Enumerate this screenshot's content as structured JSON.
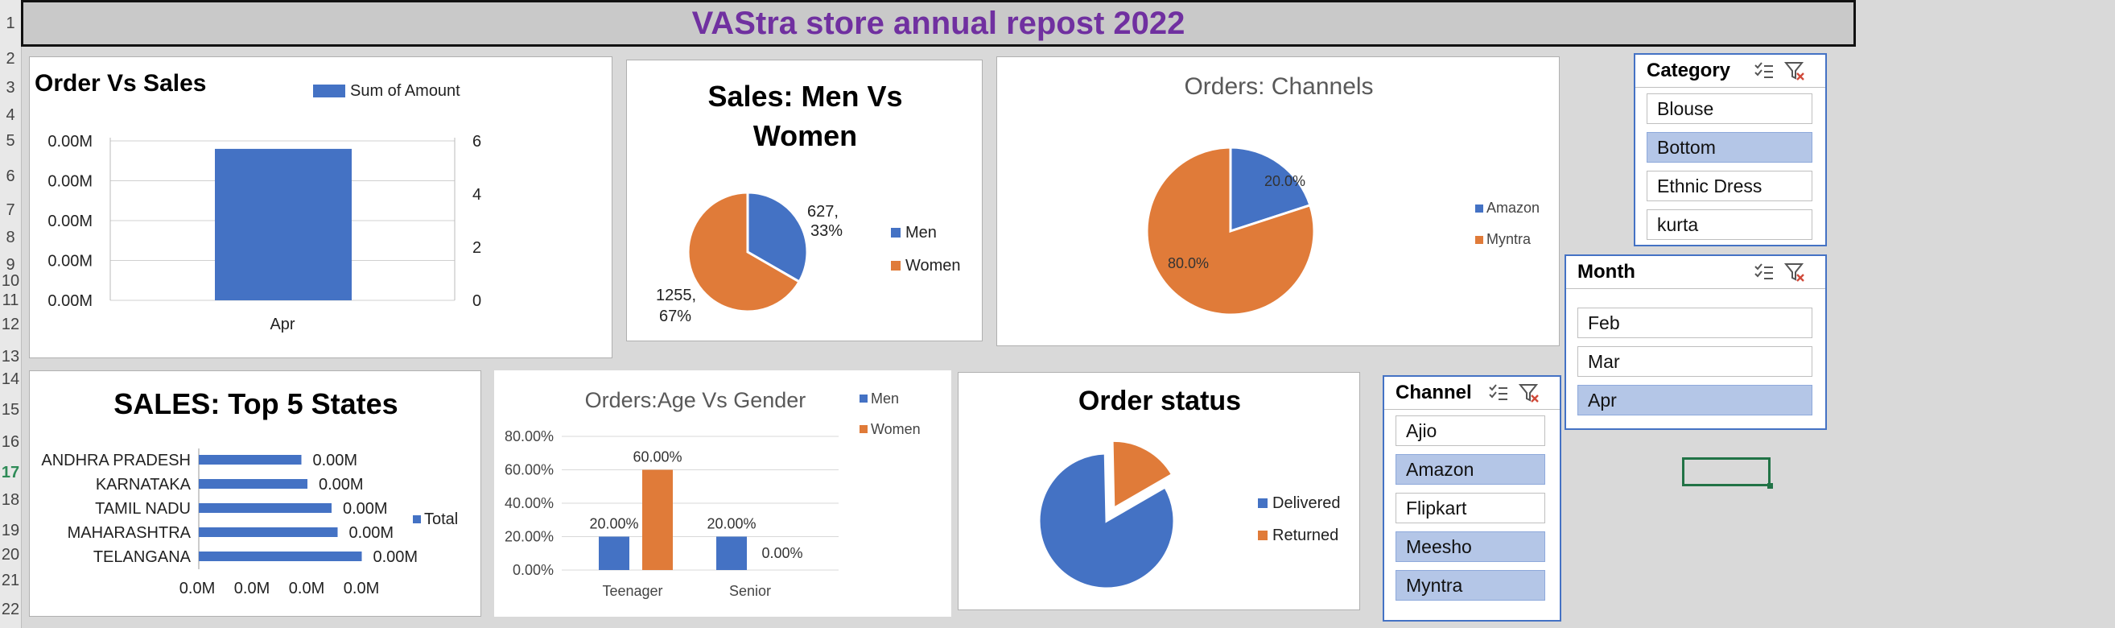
{
  "sheet": {
    "title": "VAStra store annual repost 2022",
    "row_numbers": [
      "1",
      "2",
      "3",
      "4",
      "5",
      "6",
      "7",
      "8",
      "9",
      "10",
      "11",
      "12",
      "13",
      "14",
      "15",
      "16",
      "17",
      "18",
      "19",
      "20",
      "21",
      "22"
    ],
    "active_row": "17"
  },
  "charts": {
    "order_vs_sales": {
      "title": "Order Vs Sales",
      "legend": "Sum of Amount",
      "left_ticks": [
        "0.00M",
        "0.00M",
        "0.00M",
        "0.00M",
        "0.00M"
      ],
      "right_ticks": [
        "6",
        "4",
        "2",
        "0"
      ],
      "category": "Apr"
    },
    "men_vs_women": {
      "title_line1": "Sales: Men Vs",
      "title_line2": "Women",
      "label_men_1": "627,",
      "label_men_2": "33%",
      "label_women_1": "1255,",
      "label_women_2": "67%",
      "legend": [
        "Men",
        "Women"
      ]
    },
    "channels": {
      "title": "Orders: Channels",
      "label_amazon": "20.0%",
      "label_myntra": "80.0%",
      "legend": [
        "Amazon",
        "Myntra"
      ]
    },
    "top_states": {
      "title": "SALES: Top 5 States",
      "states": [
        "ANDHRA PRADESH",
        "KARNATAKA",
        "TAMIL NADU",
        "MAHARASHTRA",
        "TELANGANA"
      ],
      "value_labels": [
        "0.00M",
        "0.00M",
        "0.00M",
        "0.00M",
        "0.00M"
      ],
      "x_ticks": [
        "0.0M",
        "0.0M",
        "0.0M",
        "0.0M"
      ],
      "legend": "Total"
    },
    "age_vs_gender": {
      "title": "Orders:Age Vs Gender",
      "y_ticks": [
        "80.00%",
        "60.00%",
        "40.00%",
        "20.00%",
        "0.00%"
      ],
      "categories": [
        "Teenager",
        "Senior"
      ],
      "bar_labels": {
        "teen_men": "20.00%",
        "teen_women": "60.00%",
        "senior_men": "20.00%",
        "senior_women": "0.00%"
      },
      "legend": [
        "Men",
        "Women"
      ]
    },
    "order_status": {
      "title": "Order status",
      "legend": [
        "Delivered",
        "Returned"
      ]
    }
  },
  "chart_data": [
    {
      "type": "bar",
      "title": "Order Vs Sales",
      "categories": [
        "Apr"
      ],
      "series": [
        {
          "name": "Sum of Amount",
          "values": [
            5.7
          ]
        }
      ],
      "ylim": [
        0,
        6
      ]
    },
    {
      "type": "pie",
      "title": "Sales: Men Vs Women",
      "categories": [
        "Men",
        "Women"
      ],
      "values": [
        627,
        1255
      ],
      "percent": [
        33,
        67
      ]
    },
    {
      "type": "pie",
      "title": "Orders: Channels",
      "categories": [
        "Amazon",
        "Myntra"
      ],
      "values": [
        20,
        80
      ]
    },
    {
      "type": "bar",
      "title": "SALES: Top 5 States",
      "categories": [
        "ANDHRA PRADESH",
        "KARNATAKA",
        "TAMIL NADU",
        "MAHARASHTRA",
        "TELANGANA"
      ],
      "series": [
        {
          "name": "Total",
          "values": [
            0.0017,
            0.0018,
            0.0022,
            0.0023,
            0.0027
          ]
        }
      ]
    },
    {
      "type": "bar",
      "title": "Orders:Age Vs Gender",
      "categories": [
        "Teenager",
        "Senior"
      ],
      "series": [
        {
          "name": "Men",
          "values": [
            20,
            20
          ]
        },
        {
          "name": "Women",
          "values": [
            60,
            0
          ]
        }
      ],
      "ylim": [
        0,
        80
      ]
    },
    {
      "type": "pie",
      "title": "Order status",
      "categories": [
        "Delivered",
        "Returned"
      ],
      "values": [
        83,
        17
      ]
    }
  ],
  "slicers": {
    "category": {
      "title": "Category",
      "items": [
        "Blouse",
        "Bottom",
        "Ethnic Dress",
        "kurta"
      ],
      "selected": [
        false,
        true,
        false,
        false
      ]
    },
    "month": {
      "title": "Month",
      "items": [
        "Feb",
        "Mar",
        "Apr"
      ],
      "selected": [
        false,
        false,
        true
      ]
    },
    "channel": {
      "title": "Channel",
      "items": [
        "Ajio",
        "Amazon",
        "Flipkart",
        "Meesho",
        "Myntra"
      ],
      "selected": [
        false,
        true,
        false,
        true,
        true
      ]
    }
  },
  "colors": {
    "blue": "#4472c4",
    "orange": "#e07b39",
    "title_purple": "#7030a0",
    "slicer_selected": "#b4c6e7"
  }
}
